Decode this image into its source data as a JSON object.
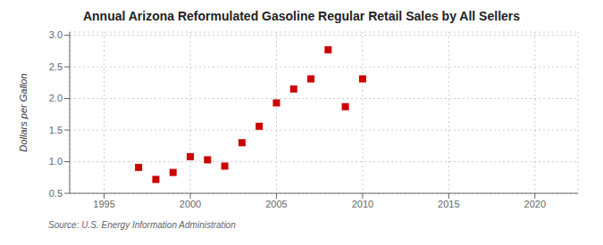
{
  "chart_data": {
    "type": "scatter",
    "title": "Annual Arizona Reformulated Gasoline Regular Retail Sales by All Sellers",
    "y_label": "Dollars per Gallon",
    "annotations": [
      "Source: U.S. Energy Information Administration"
    ],
    "x": [
      1997,
      1998,
      1999,
      2000,
      2001,
      2002,
      2003,
      2004,
      2005,
      2006,
      2007,
      2008,
      2009,
      2010
    ],
    "values": [
      0.91,
      0.72,
      0.83,
      1.08,
      1.03,
      0.93,
      1.3,
      1.56,
      1.93,
      2.15,
      2.31,
      2.77,
      1.87,
      2.31
    ],
    "color": "#cc0000",
    "marker": "square",
    "xlim": [
      1993,
      2022.5
    ],
    "ylim": [
      0.5,
      3.05
    ],
    "xticks": [
      1995,
      2000,
      2005,
      2010,
      2015,
      2020
    ],
    "yticks": [
      0.5,
      {
        "value": 1.0,
        "label": "1.0"
      },
      1.5,
      {
        "value": 2.0,
        "label": "2.0"
      },
      2.5,
      {
        "value": 3.0,
        "label": "3.0"
      }
    ],
    "grid": true
  }
}
